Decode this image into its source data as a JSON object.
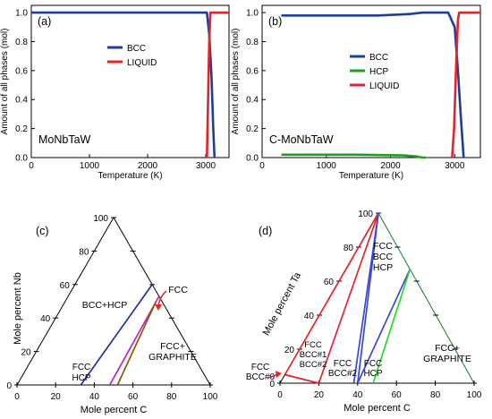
{
  "chart_data": [
    {
      "type": "line",
      "panel": "(a)",
      "inside_label": "MoNbTaW",
      "xlabel": "Temperature (K)",
      "ylabel": "Amount of all phases (mol)",
      "xlim": [
        0,
        3400
      ],
      "ylim": [
        0,
        1.05
      ],
      "xticks": [
        0,
        1000,
        2000,
        3000
      ],
      "yticks": [
        0.0,
        0.2,
        0.4,
        0.6,
        0.8,
        1.0
      ],
      "legend_position": "upper-center",
      "series": [
        {
          "name": "BCC",
          "color": "#1f3e99",
          "x": [
            0,
            3020,
            3060,
            3100,
            3130,
            3150
          ],
          "y": [
            1.0,
            1.0,
            0.85,
            0.55,
            0.2,
            0.0
          ]
        },
        {
          "name": "LIQUID",
          "color": "#e8202a",
          "x": [
            3020,
            3040,
            3060,
            3080,
            3110,
            3400
          ],
          "y": [
            0.0,
            0.4,
            0.8,
            1.0,
            1.0,
            1.0
          ]
        }
      ]
    },
    {
      "type": "line",
      "panel": "(b)",
      "inside_label": "C-MoNbTaW",
      "xlabel": "Temperature (K)",
      "ylabel": "Amount of all phases (mol)",
      "xlim": [
        0,
        3400
      ],
      "ylim": [
        0,
        1.05
      ],
      "xticks": [
        0,
        1000,
        2000,
        3000
      ],
      "yticks": [
        0.0,
        0.2,
        0.4,
        0.6,
        0.8,
        1.0
      ],
      "legend_position": "upper-right",
      "series": [
        {
          "name": "BCC",
          "color": "#1f3e99",
          "x": [
            300,
            1000,
            1800,
            2300,
            2500,
            2600,
            2900,
            3000,
            3050,
            3100,
            3140
          ],
          "y": [
            0.98,
            0.98,
            0.98,
            0.99,
            1.0,
            1.0,
            1.0,
            0.9,
            0.6,
            0.25,
            0.0
          ]
        },
        {
          "name": "HCP",
          "color": "#1ea01e",
          "x": [
            300,
            1500,
            2200,
            2400,
            2500,
            2550
          ],
          "y": [
            0.02,
            0.02,
            0.015,
            0.008,
            0.0,
            0.0
          ]
        },
        {
          "name": "LIQUID",
          "color": "#e8202a",
          "x": [
            2960,
            2990,
            3020,
            3050,
            3070,
            3400
          ],
          "y": [
            0.0,
            0.2,
            0.6,
            0.95,
            1.0,
            1.0
          ]
        }
      ]
    },
    {
      "type": "ternary",
      "panel": "(c)",
      "left_axis_label": "Mole percent Nb",
      "bottom_axis_label": "Mole percent C",
      "ticks": [
        0,
        20,
        40,
        60,
        80,
        100
      ],
      "regions": [
        {
          "label": "BCC+HCP"
        },
        {
          "label": "FCC HCP",
          "lines": [
            "FCC",
            "HCP"
          ]
        },
        {
          "label": "FCC+ GRAPHITE",
          "lines": [
            "FCC+",
            "GRAPHITE"
          ]
        },
        {
          "label": "FCC"
        }
      ],
      "boundaries": [
        {
          "color": "#1f2fa0",
          "from_c_nb": [
            33,
            0
          ],
          "to_c_nb": [
            40,
            60
          ]
        },
        {
          "color": "#c020c0",
          "from_c_nb": [
            48,
            0
          ],
          "to_c_nb": [
            47,
            53
          ]
        },
        {
          "color": "#8a5a00",
          "from_c_nb": [
            52,
            0
          ],
          "to_c_nb": [
            47,
            50
          ]
        }
      ]
    },
    {
      "type": "ternary",
      "panel": "(d)",
      "left_axis_label": "Mole percent Ta",
      "bottom_axis_label": "Mole percent C",
      "ticks": [
        0,
        20,
        40,
        60,
        80,
        100
      ],
      "regions": [
        {
          "label": "FCC BCC HCP",
          "lines": [
            "FCC",
            "BCC",
            "HCP"
          ]
        },
        {
          "label": "FCC+ GRAPHITE",
          "lines": [
            "FCC+",
            "GRAPHITE"
          ]
        },
        {
          "label": "FCC BCC#1 BCC#2",
          "lines": [
            "FCC",
            "BCC#1",
            "BCC#2"
          ]
        },
        {
          "label": "FCC BCC#2",
          "lines": [
            "FCC",
            "BCC#2"
          ]
        },
        {
          "label": "FCC HCP",
          "lines": [
            "FCC",
            "HCP"
          ]
        },
        {
          "label": "FCC BCC#0",
          "lines": [
            "FCC",
            "BCC#0"
          ]
        }
      ],
      "boundaries": [
        {
          "color": "#e8202a",
          "from_c_ta": [
            0,
            100
          ],
          "to_c_ta": [
            0,
            5
          ]
        },
        {
          "color": "#e8202a",
          "from_c_ta": [
            0,
            100
          ],
          "to_c_ta": [
            20,
            0
          ]
        },
        {
          "color": "#e8202a",
          "from_c_ta": [
            0,
            5
          ],
          "to_c_ta": [
            20,
            0
          ]
        },
        {
          "color": "#3a46d8",
          "from_c_ta": [
            0,
            100
          ],
          "to_c_ta": [
            38,
            0
          ]
        },
        {
          "color": "#3a46d8",
          "from_c_ta": [
            0,
            100
          ],
          "to_c_ta": [
            40,
            0
          ]
        },
        {
          "color": "#3a46d8",
          "from_c_ta": [
            33,
            67
          ],
          "to_c_ta": [
            40,
            0
          ]
        },
        {
          "color": "#22dd22",
          "from_c_ta": [
            33,
            67
          ],
          "to_c_ta": [
            48,
            0
          ]
        }
      ]
    }
  ]
}
